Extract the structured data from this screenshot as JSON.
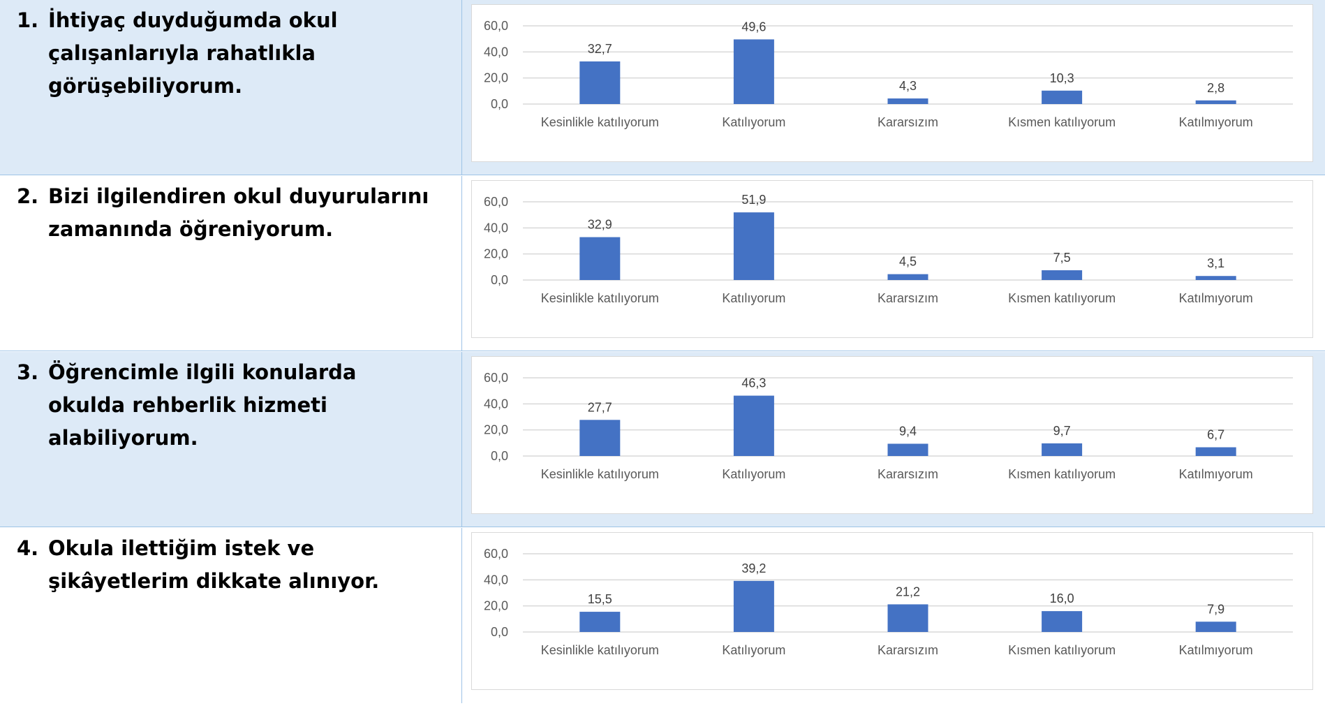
{
  "questions": [
    {
      "number": "1.",
      "text": "İhtiyaç duyduğumda okul çalışanlarıyla rahatlıkla görüşebiliyorum."
    },
    {
      "number": "2.",
      "text": "Bizi ilgilendiren okul duyurularını zamanında öğreniyorum."
    },
    {
      "number": "3.",
      "text": "Öğrencimle ilgili konularda okulda rehberlik hizmeti alabiliyorum."
    },
    {
      "number": "4.",
      "text": "Okula ilettiğim istek ve şikâyetlerim dikkate alınıyor."
    }
  ],
  "chart_data": [
    {
      "type": "bar",
      "categories": [
        "Kesinlikle katılıyorum",
        "Katılıyorum",
        "Kararsızım",
        "Kısmen katılıyorum",
        "Katılmıyorum"
      ],
      "values": [
        32.7,
        49.6,
        4.3,
        10.3,
        2.8
      ],
      "value_labels": [
        "32,7",
        "49,6",
        "4,3",
        "10,3",
        "2,8"
      ],
      "ylim": [
        0,
        60
      ],
      "yticks": [
        "0,0",
        "20,0",
        "40,0",
        "60,0"
      ],
      "grid": true,
      "legend": "none",
      "bar_color": "#4472c4"
    },
    {
      "type": "bar",
      "categories": [
        "Kesinlikle katılıyorum",
        "Katılıyorum",
        "Kararsızım",
        "Kısmen katılıyorum",
        "Katılmıyorum"
      ],
      "values": [
        32.9,
        51.9,
        4.5,
        7.5,
        3.1
      ],
      "value_labels": [
        "32,9",
        "51,9",
        "4,5",
        "7,5",
        "3,1"
      ],
      "ylim": [
        0,
        60
      ],
      "yticks": [
        "0,0",
        "20,0",
        "40,0",
        "60,0"
      ],
      "grid": true,
      "legend": "none",
      "bar_color": "#4472c4"
    },
    {
      "type": "bar",
      "categories": [
        "Kesinlikle katılıyorum",
        "Katılıyorum",
        "Kararsızım",
        "Kısmen katılıyorum",
        "Katılmıyorum"
      ],
      "values": [
        27.7,
        46.3,
        9.4,
        9.7,
        6.7
      ],
      "value_labels": [
        "27,7",
        "46,3",
        "9,4",
        "9,7",
        "6,7"
      ],
      "ylim": [
        0,
        60
      ],
      "yticks": [
        "0,0",
        "20,0",
        "40,0",
        "60,0"
      ],
      "grid": true,
      "legend": "none",
      "bar_color": "#4472c4"
    },
    {
      "type": "bar",
      "categories": [
        "Kesinlikle katılıyorum",
        "Katılıyorum",
        "Kararsızım",
        "Kısmen katılıyorum",
        "Katılmıyorum"
      ],
      "values": [
        15.5,
        39.2,
        21.2,
        16.0,
        7.9
      ],
      "value_labels": [
        "15,5",
        "39,2",
        "21,2",
        "16,0",
        "7,9"
      ],
      "ylim": [
        0,
        60
      ],
      "yticks": [
        "0,0",
        "20,0",
        "40,0",
        "60,0"
      ],
      "grid": true,
      "legend": "none",
      "bar_color": "#4472c4"
    }
  ]
}
